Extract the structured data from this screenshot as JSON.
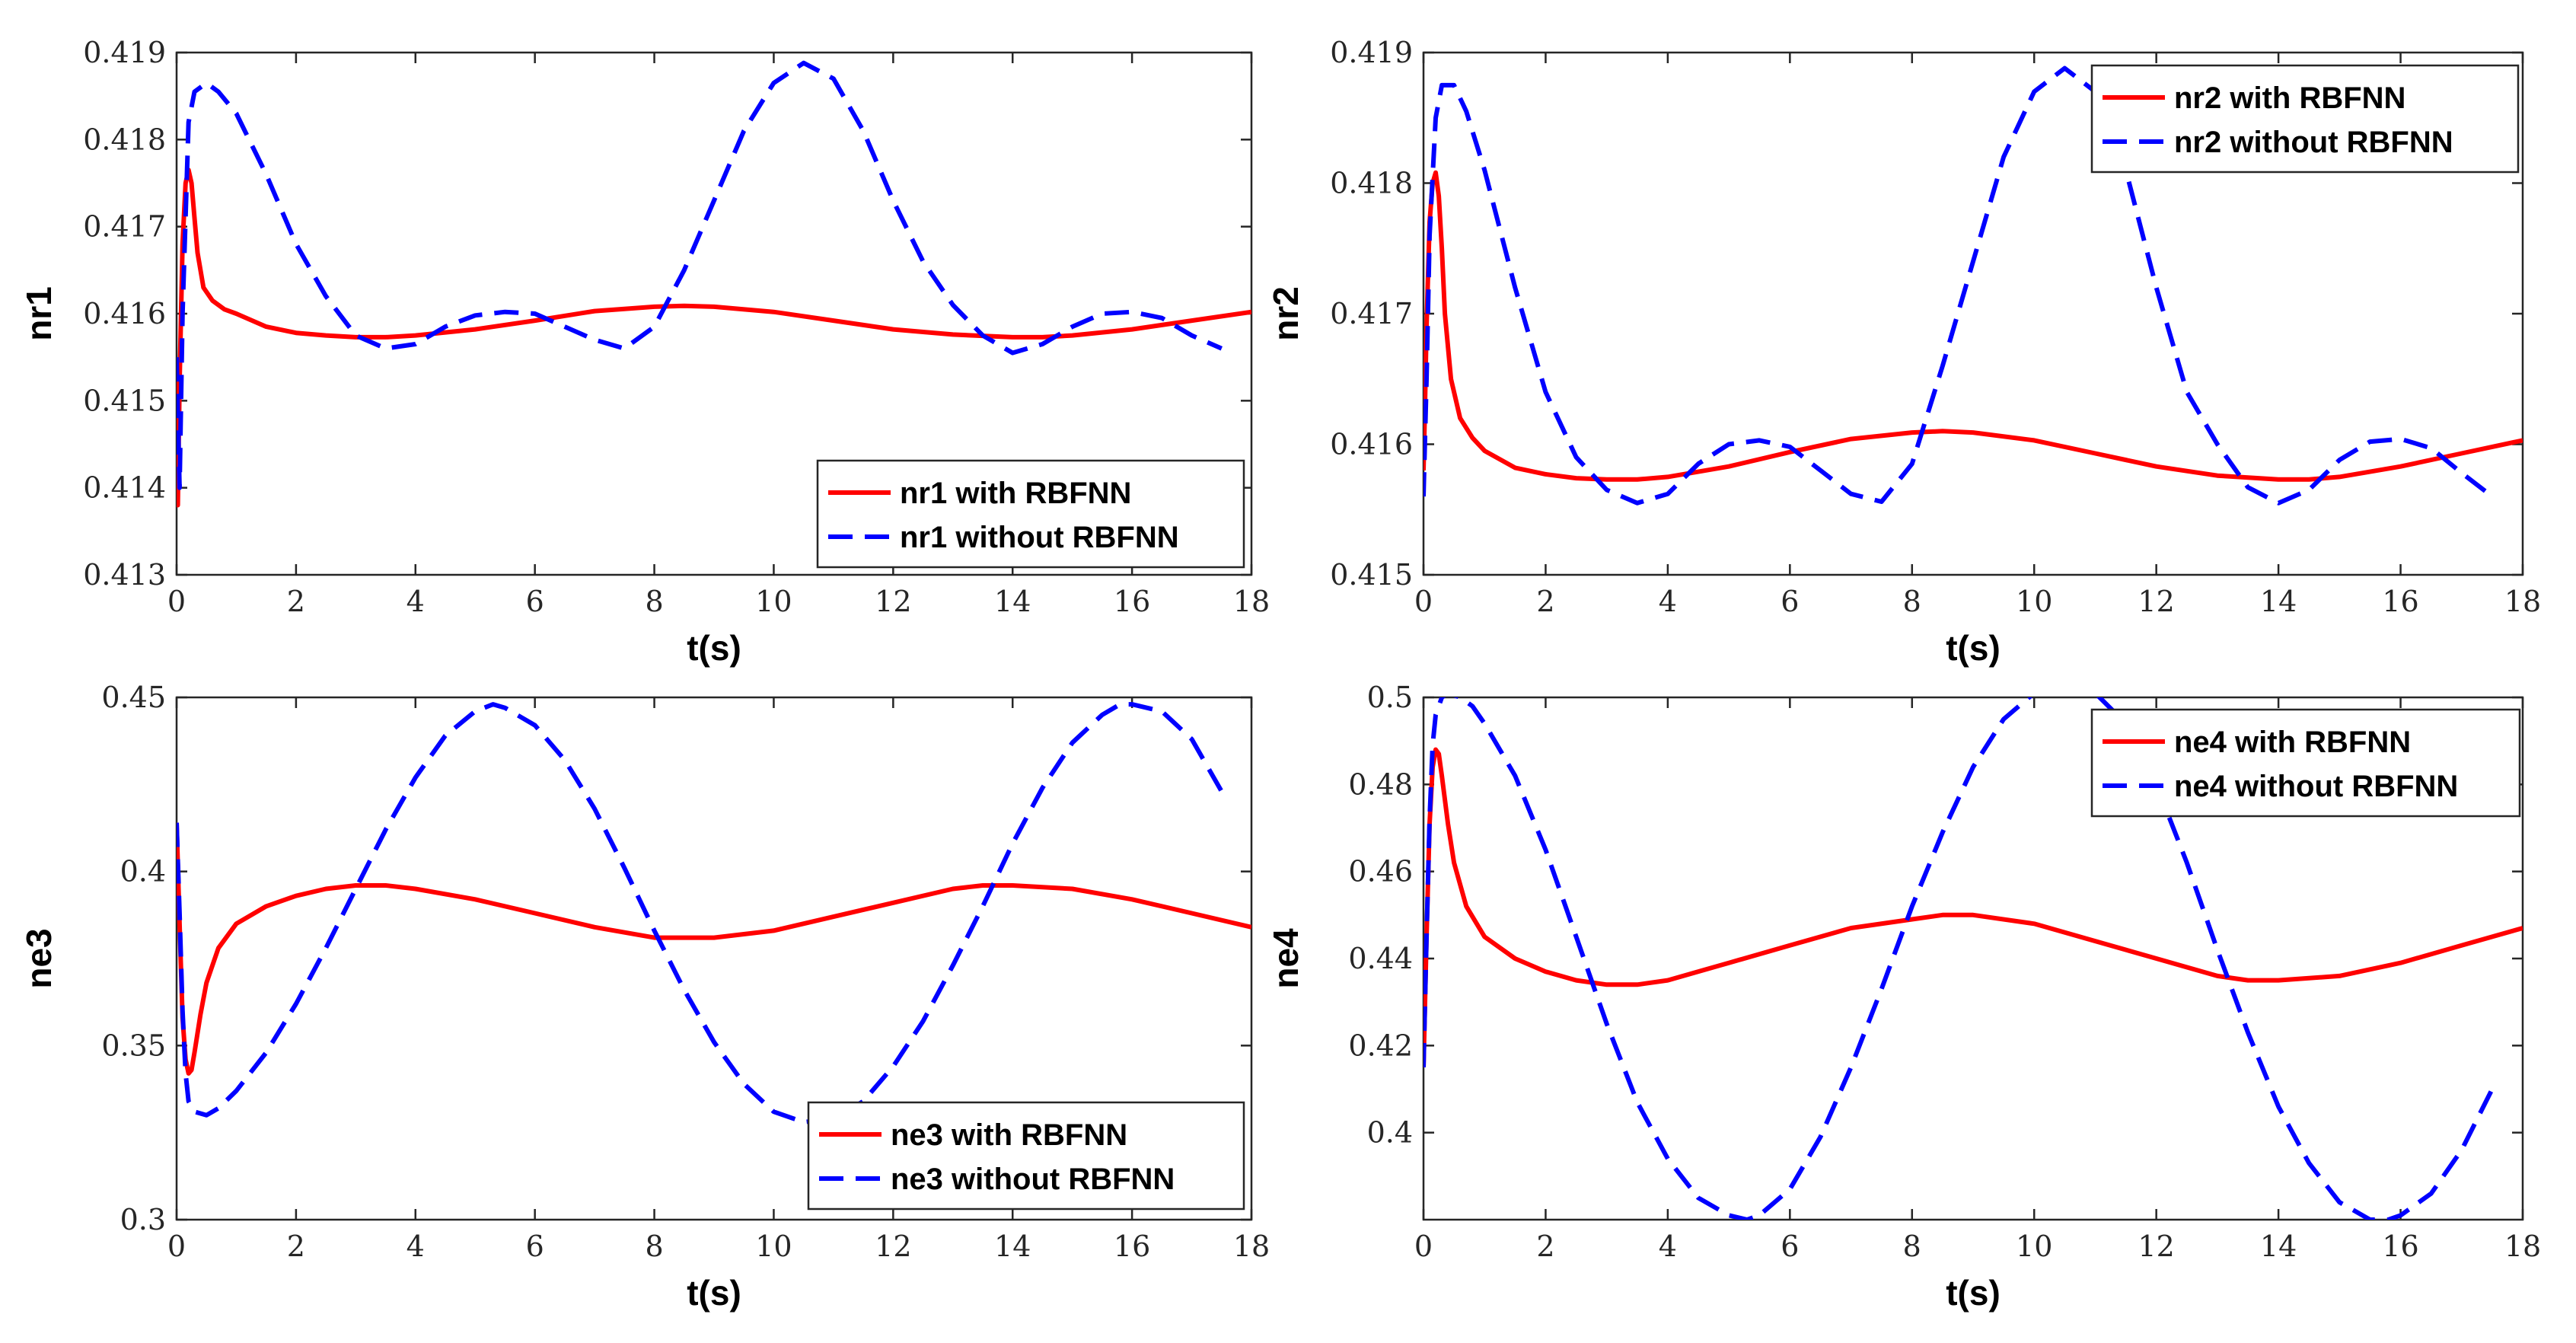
{
  "figure": {
    "layout": "2x2 grid"
  },
  "chart_data": [
    {
      "id": "nr1",
      "type": "line",
      "title": "",
      "xlabel": "t(s)",
      "ylabel": "nr1",
      "xlim": [
        0,
        18
      ],
      "ylim": [
        0.413,
        0.419
      ],
      "xticks": [
        0,
        2,
        4,
        6,
        8,
        10,
        12,
        14,
        16,
        18
      ],
      "yticks": [
        0.413,
        0.414,
        0.415,
        0.416,
        0.417,
        0.418,
        0.419
      ],
      "ytick_labels": [
        "0.413",
        "0.414",
        "0.415",
        "0.416",
        "0.417",
        "0.418",
        "0.419"
      ],
      "grid": false,
      "legend_position": "bottom-right",
      "series": [
        {
          "name": "nr1 with RBFNN",
          "color": "#ff0000",
          "style": "solid",
          "x": [
            0,
            0.02,
            0.05,
            0.1,
            0.15,
            0.2,
            0.25,
            0.3,
            0.35,
            0.45,
            0.6,
            0.8,
            1.0,
            1.5,
            2,
            2.5,
            3,
            3.5,
            4,
            5,
            6,
            7,
            8,
            8.5,
            9,
            10,
            11,
            12,
            13,
            14,
            14.5,
            15,
            16,
            17,
            18
          ],
          "y": [
            0.4153,
            0.4138,
            0.4152,
            0.4168,
            0.4175,
            0.41765,
            0.4175,
            0.4171,
            0.4167,
            0.4163,
            0.41615,
            0.41605,
            0.416,
            0.41585,
            0.41578,
            0.41575,
            0.41573,
            0.41573,
            0.41575,
            0.41582,
            0.41592,
            0.41603,
            0.41608,
            0.41609,
            0.41608,
            0.41602,
            0.41592,
            0.41582,
            0.41576,
            0.41573,
            0.41573,
            0.41575,
            0.41582,
            0.41592,
            0.41602
          ]
        },
        {
          "name": "nr1 without RBFNN",
          "color": "#0000ff",
          "style": "dashed",
          "x": [
            0,
            0.05,
            0.1,
            0.2,
            0.3,
            0.5,
            0.7,
            1.0,
            1.5,
            2,
            2.5,
            3,
            3.5,
            4,
            4.5,
            5,
            5.5,
            6,
            6.5,
            7,
            7.5,
            8,
            8.5,
            9,
            9.5,
            10,
            10.5,
            11,
            11.5,
            12,
            12.5,
            13,
            13.5,
            14,
            14.5,
            15,
            15.5,
            16,
            16.5,
            17,
            17.5
          ],
          "y": [
            0.4155,
            0.414,
            0.416,
            0.4182,
            0.41855,
            0.41865,
            0.41855,
            0.4183,
            0.4176,
            0.4168,
            0.4162,
            0.41575,
            0.4156,
            0.41565,
            0.41585,
            0.41598,
            0.41602,
            0.416,
            0.41585,
            0.4157,
            0.4156,
            0.41585,
            0.4165,
            0.4173,
            0.4181,
            0.41865,
            0.41888,
            0.4187,
            0.4181,
            0.4173,
            0.4166,
            0.4161,
            0.41575,
            0.41555,
            0.41565,
            0.41585,
            0.416,
            0.41602,
            0.41595,
            0.41575,
            0.4156
          ]
        }
      ]
    },
    {
      "id": "nr2",
      "type": "line",
      "title": "",
      "xlabel": "t(s)",
      "ylabel": "nr2",
      "xlim": [
        0,
        18
      ],
      "ylim": [
        0.415,
        0.419
      ],
      "xticks": [
        0,
        2,
        4,
        6,
        8,
        10,
        12,
        14,
        16,
        18
      ],
      "yticks": [
        0.415,
        0.416,
        0.417,
        0.418,
        0.419
      ],
      "ytick_labels": [
        "0.415",
        "0.416",
        "0.417",
        "0.418",
        "0.419"
      ],
      "grid": false,
      "legend_position": "top-right",
      "series": [
        {
          "name": "nr2 with RBFNN",
          "color": "#ff0000",
          "style": "solid",
          "x": [
            0,
            0.02,
            0.05,
            0.1,
            0.15,
            0.2,
            0.25,
            0.3,
            0.35,
            0.45,
            0.6,
            0.8,
            1.0,
            1.5,
            2,
            2.5,
            3,
            3.5,
            4,
            5,
            6,
            7,
            8,
            8.5,
            9,
            10,
            11,
            12,
            13,
            14,
            14.5,
            15,
            16,
            17,
            18
          ],
          "y": [
            0.4158,
            0.4162,
            0.4169,
            0.4177,
            0.418,
            0.41808,
            0.4179,
            0.4175,
            0.417,
            0.4165,
            0.4162,
            0.41605,
            0.41595,
            0.41582,
            0.41577,
            0.41574,
            0.41573,
            0.41573,
            0.41575,
            0.41583,
            0.41594,
            0.41604,
            0.41609,
            0.4161,
            0.41609,
            0.41603,
            0.41593,
            0.41583,
            0.41576,
            0.41573,
            0.41573,
            0.41575,
            0.41583,
            0.41593,
            0.41603
          ]
        },
        {
          "name": "nr2 without RBFNN",
          "color": "#0000ff",
          "style": "dashed",
          "x": [
            0,
            0.05,
            0.1,
            0.2,
            0.3,
            0.5,
            0.7,
            1.0,
            1.5,
            2,
            2.5,
            3,
            3.5,
            4,
            4.5,
            5,
            5.5,
            6,
            6.5,
            7,
            7.5,
            8,
            8.5,
            9,
            9.5,
            10,
            10.5,
            11,
            11.5,
            12,
            12.5,
            13,
            13.5,
            14,
            14.5,
            15,
            15.5,
            16,
            16.5,
            17,
            17.5
          ],
          "y": [
            0.4156,
            0.4165,
            0.4176,
            0.4185,
            0.41875,
            0.41875,
            0.41855,
            0.4181,
            0.4172,
            0.4164,
            0.4159,
            0.41565,
            0.41555,
            0.41562,
            0.41585,
            0.416,
            0.41603,
            0.41598,
            0.4158,
            0.41562,
            0.41556,
            0.41585,
            0.4166,
            0.4174,
            0.4182,
            0.4187,
            0.41888,
            0.4187,
            0.4181,
            0.4172,
            0.4164,
            0.416,
            0.41567,
            0.41555,
            0.41565,
            0.41588,
            0.41602,
            0.41604,
            0.41597,
            0.41578,
            0.4156
          ]
        }
      ]
    },
    {
      "id": "ne3",
      "type": "line",
      "title": "",
      "xlabel": "t(s)",
      "ylabel": "ne3",
      "xlim": [
        0,
        18
      ],
      "ylim": [
        0.3,
        0.45
      ],
      "xticks": [
        0,
        2,
        4,
        6,
        8,
        10,
        12,
        14,
        16,
        18
      ],
      "yticks": [
        0.3,
        0.35,
        0.4,
        0.45
      ],
      "ytick_labels": [
        "0.3",
        "0.35",
        "0.4",
        "0.45"
      ],
      "grid": false,
      "legend_position": "bottom-right",
      "series": [
        {
          "name": "ne3 with RBFNN",
          "color": "#ff0000",
          "style": "solid",
          "x": [
            0,
            0.05,
            0.1,
            0.15,
            0.2,
            0.25,
            0.3,
            0.4,
            0.5,
            0.7,
            1.0,
            1.5,
            2,
            2.5,
            3,
            3.5,
            4,
            5,
            6,
            7,
            8,
            8.5,
            9,
            10,
            11,
            12,
            13,
            13.5,
            14,
            15,
            16,
            17,
            18
          ],
          "y": [
            0.414,
            0.385,
            0.358,
            0.346,
            0.342,
            0.343,
            0.348,
            0.359,
            0.368,
            0.378,
            0.385,
            0.39,
            0.393,
            0.395,
            0.396,
            0.396,
            0.395,
            0.392,
            0.388,
            0.384,
            0.381,
            0.381,
            0.381,
            0.383,
            0.387,
            0.391,
            0.395,
            0.396,
            0.396,
            0.395,
            0.392,
            0.388,
            0.384
          ]
        },
        {
          "name": "ne3 without RBFNN",
          "color": "#0000ff",
          "style": "dashed",
          "x": [
            0,
            0.05,
            0.1,
            0.15,
            0.2,
            0.3,
            0.5,
            0.7,
            1.0,
            1.5,
            2,
            2.5,
            3,
            3.5,
            4,
            4.5,
            5,
            5.3,
            5.5,
            6,
            6.5,
            7,
            7.5,
            8,
            8.5,
            9,
            9.5,
            10,
            10.5,
            11,
            11.5,
            12,
            12.5,
            13,
            13.5,
            14,
            14.5,
            15,
            15.5,
            15.8,
            16,
            16.5,
            17,
            17.5
          ],
          "y": [
            0.414,
            0.388,
            0.36,
            0.342,
            0.334,
            0.331,
            0.33,
            0.332,
            0.337,
            0.348,
            0.362,
            0.378,
            0.395,
            0.412,
            0.427,
            0.439,
            0.446,
            0.448,
            0.447,
            0.442,
            0.432,
            0.418,
            0.401,
            0.383,
            0.366,
            0.351,
            0.339,
            0.331,
            0.328,
            0.329,
            0.334,
            0.344,
            0.357,
            0.373,
            0.39,
            0.408,
            0.424,
            0.437,
            0.445,
            0.448,
            0.448,
            0.446,
            0.438,
            0.423
          ]
        }
      ]
    },
    {
      "id": "ne4",
      "type": "line",
      "title": "",
      "xlabel": "t(s)",
      "ylabel": "ne4",
      "xlim": [
        0,
        18
      ],
      "ylim": [
        0.38,
        0.5
      ],
      "xticks": [
        0,
        2,
        4,
        6,
        8,
        10,
        12,
        14,
        16,
        18
      ],
      "yticks": [
        0.4,
        0.42,
        0.44,
        0.46,
        0.48,
        0.5
      ],
      "ytick_labels": [
        "0.4",
        "0.42",
        "0.44",
        "0.46",
        "0.48",
        "0.5"
      ],
      "grid": false,
      "legend_position": "top-right",
      "series": [
        {
          "name": "ne4 with RBFNN",
          "color": "#ff0000",
          "style": "solid",
          "x": [
            0,
            0.05,
            0.1,
            0.15,
            0.2,
            0.25,
            0.3,
            0.4,
            0.5,
            0.7,
            1.0,
            1.5,
            2,
            2.5,
            3,
            3.5,
            4,
            5,
            6,
            7,
            8,
            8.5,
            9,
            10,
            11,
            12,
            13,
            13.5,
            14,
            15,
            16,
            17,
            18
          ],
          "y": [
            0.415,
            0.445,
            0.471,
            0.484,
            0.488,
            0.487,
            0.482,
            0.471,
            0.462,
            0.452,
            0.445,
            0.44,
            0.437,
            0.435,
            0.434,
            0.434,
            0.435,
            0.439,
            0.443,
            0.447,
            0.449,
            0.45,
            0.45,
            0.448,
            0.444,
            0.44,
            0.436,
            0.435,
            0.435,
            0.436,
            0.439,
            0.443,
            0.447
          ]
        },
        {
          "name": "ne4 without RBFNN",
          "color": "#0000ff",
          "style": "dashed",
          "x": [
            0,
            0.05,
            0.1,
            0.15,
            0.2,
            0.3,
            0.4,
            0.6,
            0.8,
            1.0,
            1.5,
            2,
            2.5,
            3,
            3.5,
            4,
            4.5,
            5,
            5.3,
            5.5,
            6,
            6.5,
            7,
            7.5,
            8,
            8.5,
            9,
            9.5,
            10,
            10.5,
            10.7,
            11,
            11.5,
            12,
            12.5,
            13,
            13.5,
            14,
            14.5,
            15,
            15.5,
            15.8,
            16,
            16.5,
            17,
            17.5
          ],
          "y": [
            0.415,
            0.445,
            0.472,
            0.489,
            0.496,
            0.5,
            0.501,
            0.5,
            0.498,
            0.494,
            0.482,
            0.465,
            0.445,
            0.425,
            0.407,
            0.394,
            0.385,
            0.381,
            0.38,
            0.381,
            0.387,
            0.399,
            0.415,
            0.433,
            0.452,
            0.469,
            0.484,
            0.495,
            0.501,
            0.503,
            0.503,
            0.501,
            0.494,
            0.48,
            0.462,
            0.442,
            0.423,
            0.406,
            0.393,
            0.384,
            0.38,
            0.38,
            0.381,
            0.386,
            0.396,
            0.41
          ]
        }
      ]
    }
  ]
}
